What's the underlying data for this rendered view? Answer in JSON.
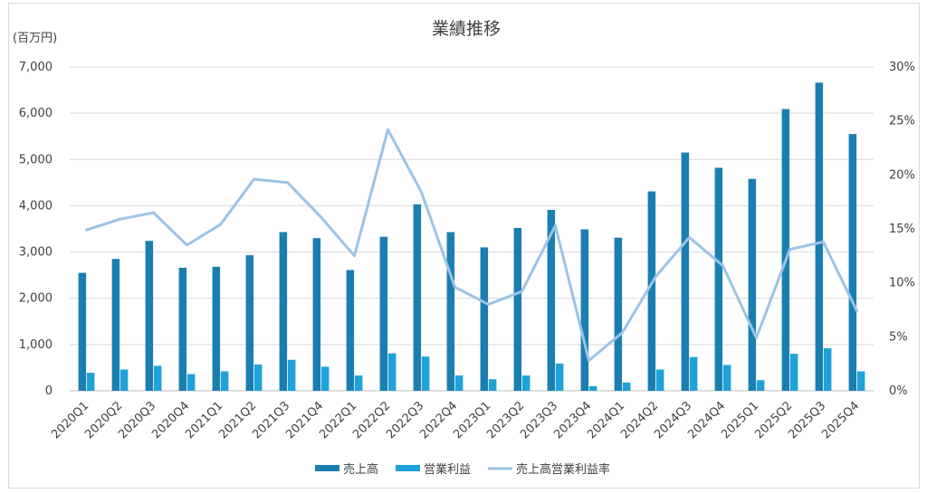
{
  "chart_data": {
    "type": "bar",
    "title": "業績推移",
    "y_unit_label": "(百万円)",
    "categories": [
      "2020Q1",
      "2020Q2",
      "2020Q3",
      "2020Q4",
      "2021Q1",
      "2021Q2",
      "2021Q3",
      "2021Q4",
      "2022Q1",
      "2022Q2",
      "2022Q3",
      "2022Q4",
      "2023Q1",
      "2023Q2",
      "2023Q3",
      "2023Q4",
      "2024Q1",
      "2024Q2",
      "2024Q3",
      "2024Q4",
      "2025Q1",
      "2025Q2",
      "2025Q3",
      "2025Q4"
    ],
    "series": [
      {
        "name": "売上高",
        "kind": "bar",
        "axis": "left",
        "color": "#1a7fb0",
        "values": [
          2550,
          2850,
          3240,
          2660,
          2680,
          2930,
          3430,
          3300,
          2610,
          3330,
          4030,
          3430,
          3100,
          3520,
          3910,
          3490,
          3310,
          4310,
          5150,
          4820,
          4580,
          6090,
          6660,
          5550
        ]
      },
      {
        "name": "営業利益",
        "kind": "bar",
        "axis": "left",
        "color": "#1fa2d9",
        "values": [
          390,
          460,
          540,
          360,
          420,
          570,
          670,
          520,
          330,
          810,
          740,
          330,
          250,
          330,
          590,
          100,
          180,
          460,
          730,
          560,
          230,
          800,
          920,
          420
        ]
      },
      {
        "name": "売上高営業利益率",
        "kind": "line",
        "axis": "right",
        "color": "#9dc3e6",
        "values": [
          14.9,
          15.9,
          16.5,
          13.5,
          15.4,
          19.6,
          19.3,
          16.1,
          12.5,
          24.2,
          18.4,
          9.6,
          8.0,
          9.2,
          15.3,
          2.8,
          5.4,
          10.6,
          14.2,
          11.6,
          4.9,
          13.1,
          13.8,
          7.4
        ]
      }
    ],
    "y_left": {
      "min": 0,
      "max": 7000,
      "ticks": [
        "0",
        "1,000",
        "2,000",
        "3,000",
        "4,000",
        "5,000",
        "6,000",
        "7,000"
      ]
    },
    "y_right": {
      "min": 0,
      "max": 30,
      "ticks": [
        "0%",
        "5%",
        "10%",
        "15%",
        "20%",
        "25%",
        "30%"
      ]
    },
    "grid": true,
    "legend_position": "bottom"
  }
}
